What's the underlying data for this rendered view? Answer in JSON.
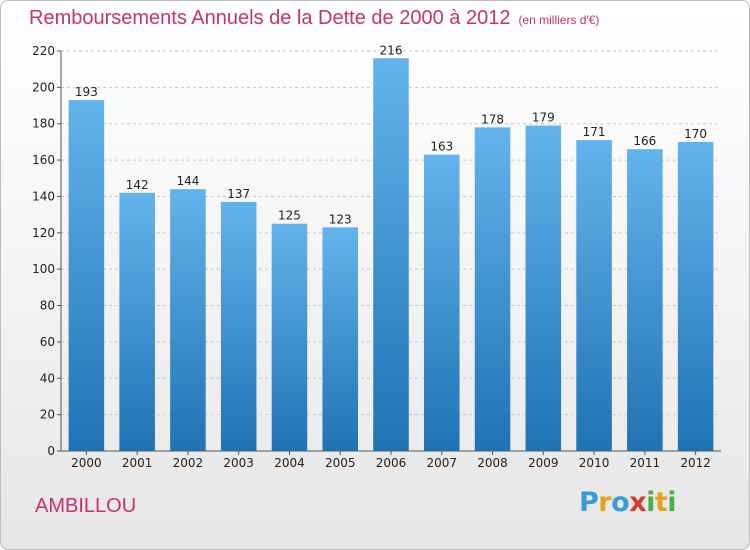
{
  "title": "Remboursements Annuels de la Dette de 2000 à 2012",
  "unit": "(en milliers d'€)",
  "commune": "AMBILLOU",
  "logo": {
    "letters": [
      "P",
      "r",
      "o",
      "x",
      "i",
      "t",
      "i"
    ],
    "colors": [
      "#3a9bd9",
      "#e8a11b",
      "#3a9bd9",
      "#d63a2e",
      "#4ab244",
      "#e8a11b",
      "#4ab244"
    ]
  },
  "colors": {
    "bar_top": "#63b3ec",
    "bar_bottom": "#1f73b4",
    "title": "#c8326e"
  },
  "chart_data": {
    "type": "bar",
    "categories": [
      "2000",
      "2001",
      "2002",
      "2003",
      "2004",
      "2005",
      "2006",
      "2007",
      "2008",
      "2009",
      "2010",
      "2011",
      "2012"
    ],
    "values": [
      193,
      142,
      144,
      137,
      125,
      123,
      216,
      163,
      178,
      179,
      171,
      166,
      170
    ],
    "ylim": [
      0,
      220
    ],
    "yticks": [
      0,
      20,
      40,
      60,
      80,
      100,
      120,
      140,
      160,
      180,
      200,
      220
    ],
    "grid": true
  }
}
